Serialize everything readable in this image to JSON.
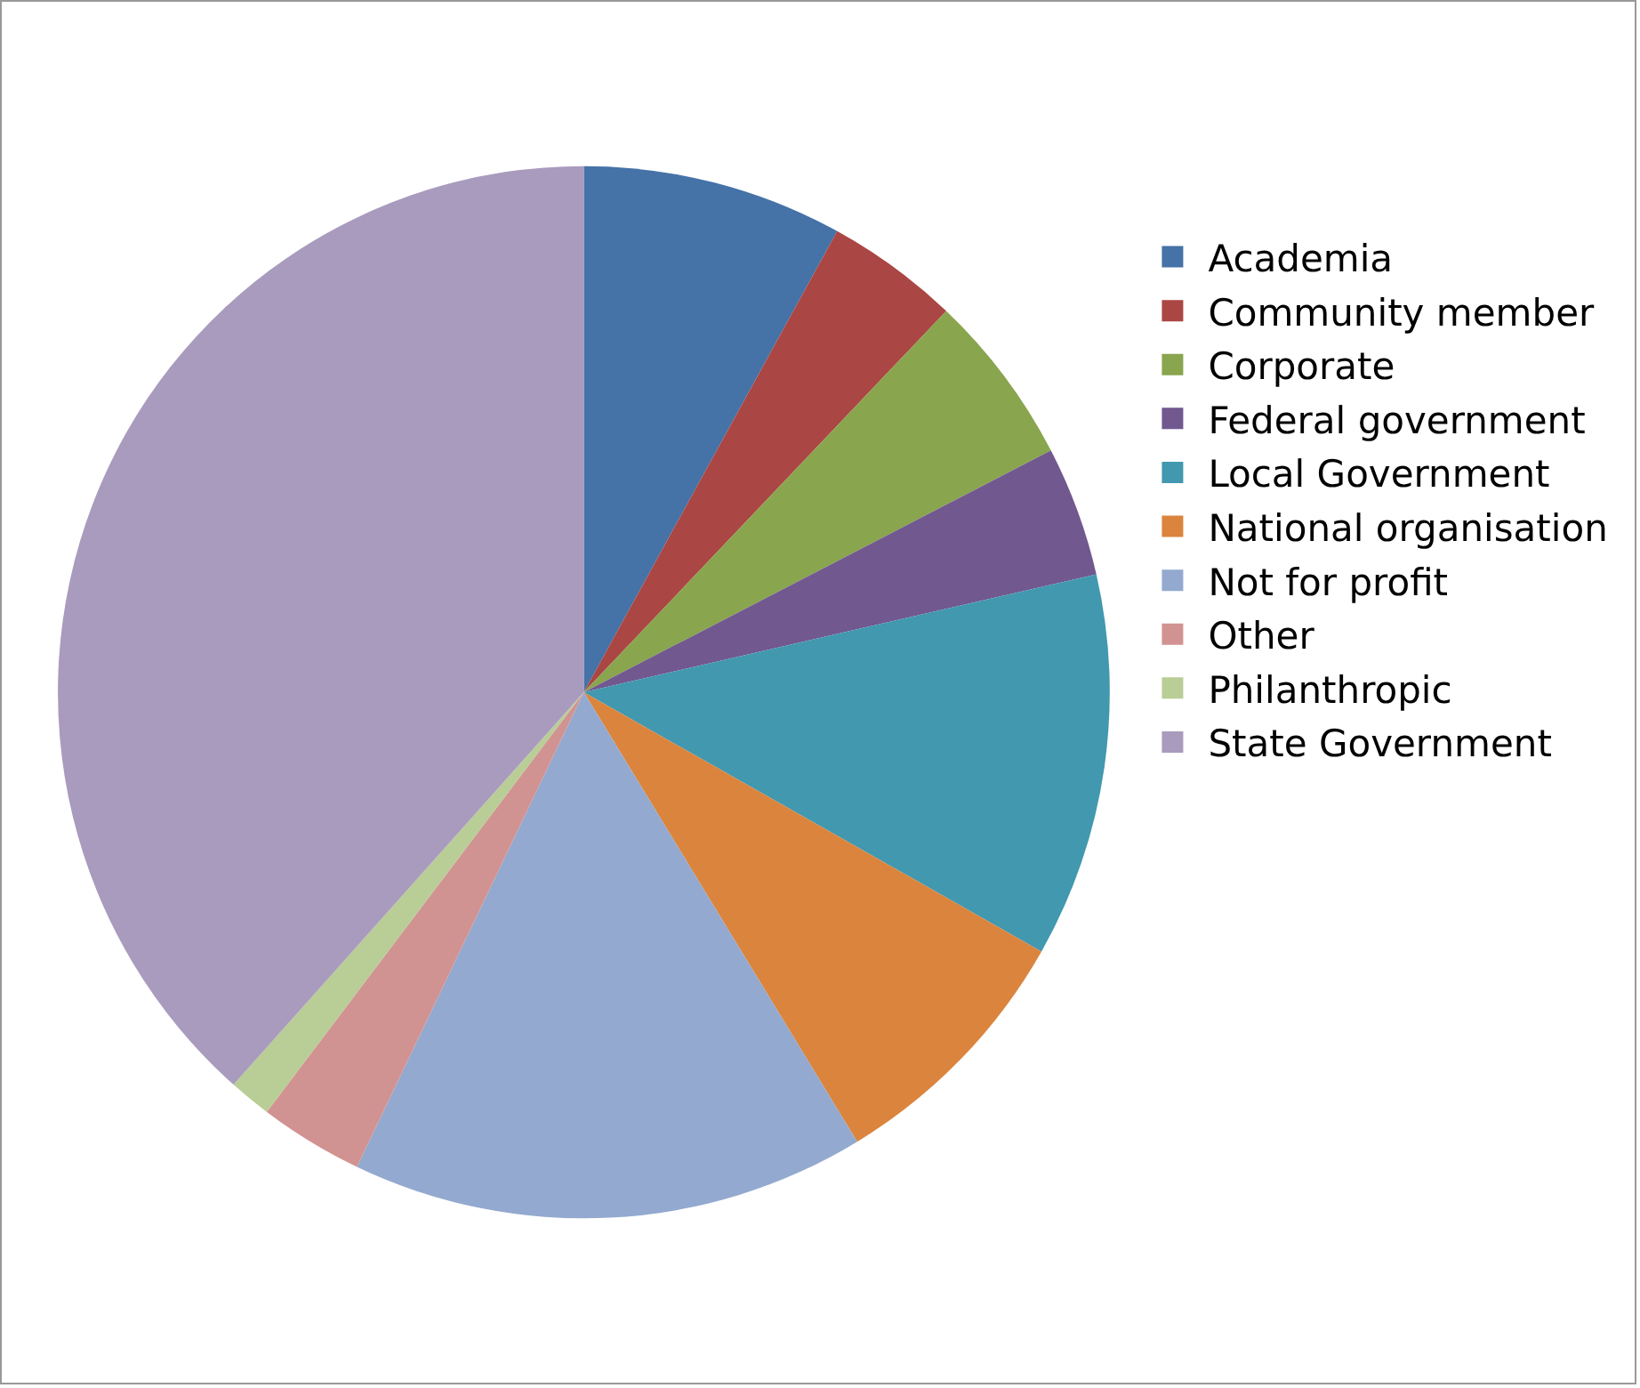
{
  "chart_data": {
    "type": "pie",
    "categories": [
      "Academia",
      "Community member",
      "Corporate",
      "Federal government",
      "Local Government",
      "National organisation",
      "Not for profit",
      "Other",
      "Philanthropic",
      "State Government"
    ],
    "values": [
      8.0,
      4.1,
      5.3,
      4.0,
      11.8,
      8.1,
      15.8,
      3.2,
      1.3,
      38.4
    ],
    "colors": [
      "#4572a7",
      "#aa4643",
      "#89a54e",
      "#71588f",
      "#4198af",
      "#db843d",
      "#93a9cf",
      "#d19392",
      "#b9cd96",
      "#a99bbd"
    ],
    "legend": "right"
  }
}
